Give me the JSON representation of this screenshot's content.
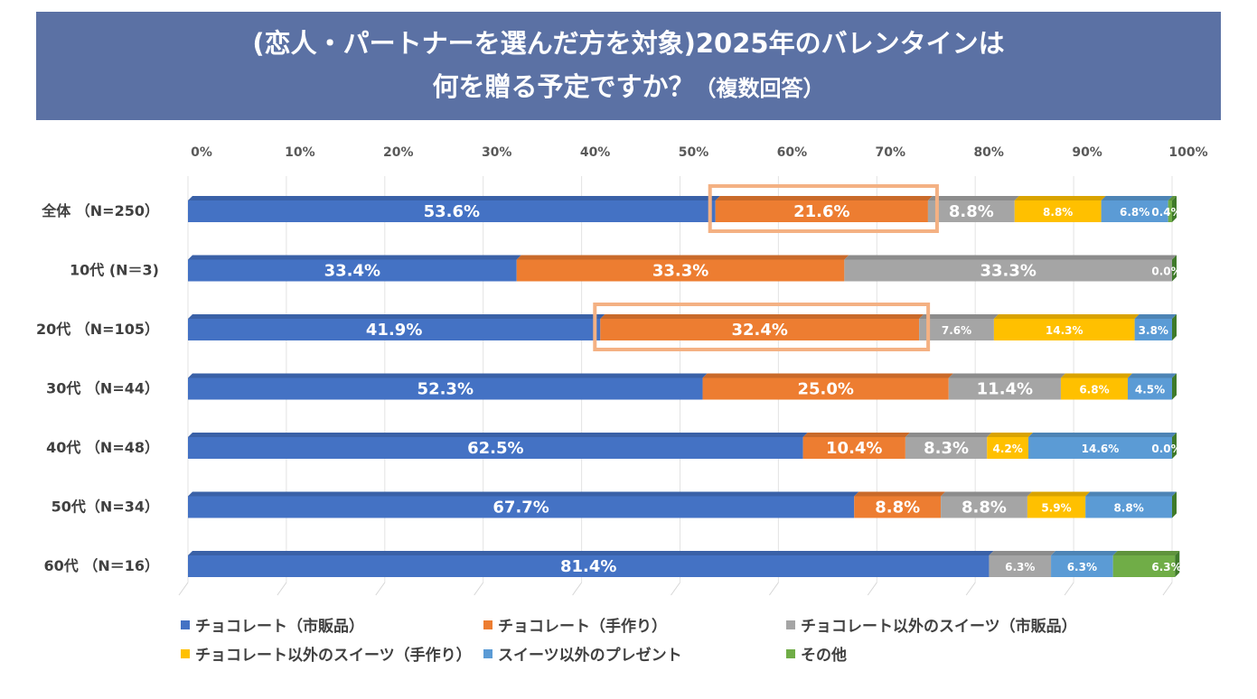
{
  "title": {
    "line1": "(恋人・パートナーを選んだ方を対象)2025年のバレンタインは",
    "line2": "何を贈る予定ですか？",
    "line2_suffix": "（複数回答）"
  },
  "chart_data": {
    "type": "bar",
    "orientation": "horizontal-stacked-100",
    "xlim": [
      0,
      100
    ],
    "xticks": [
      "0%",
      "10%",
      "20%",
      "30%",
      "40%",
      "50%",
      "60%",
      "70%",
      "80%",
      "90%",
      "100%"
    ],
    "categories": [
      "全体 （N=250）",
      "10代 (N＝3)",
      "20代 （N=105）",
      "30代 （N=44）",
      "40代 （N=48）",
      "50代（N=34）",
      "60代 （N＝16）"
    ],
    "series": [
      {
        "name": "チョコレート（市販品）",
        "color": "#4472c4",
        "values": [
          53.6,
          33.4,
          41.9,
          52.3,
          62.5,
          67.7,
          81.4
        ],
        "labels": [
          "53.6%",
          "33.4%",
          "41.9%",
          "52.3%",
          "62.5%",
          "67.7%",
          "81.4%"
        ]
      },
      {
        "name": "チョコレート（手作り）",
        "color": "#ed7d31",
        "values": [
          21.6,
          33.3,
          32.4,
          25.0,
          10.4,
          8.8,
          0
        ],
        "labels": [
          "21.6%",
          "33.3%",
          "32.4%",
          "25.0%",
          "10.4%",
          "8.8%",
          ""
        ]
      },
      {
        "name": "チョコレート以外のスイーツ（市販品）",
        "color": "#a5a5a5",
        "values": [
          8.8,
          33.3,
          7.6,
          11.4,
          8.3,
          8.8,
          6.3
        ],
        "labels": [
          "8.8%",
          "33.3%",
          "7.6%",
          "11.4%",
          "8.3%",
          "8.8%",
          "6.3%"
        ]
      },
      {
        "name": "チョコレート以外のスイーツ（手作り）",
        "color": "#ffc000",
        "values": [
          8.8,
          0,
          14.3,
          6.8,
          4.2,
          5.9,
          0
        ],
        "labels": [
          "8.8%",
          "",
          "14.3%",
          "6.8%",
          "4.2%",
          "5.9%",
          ""
        ]
      },
      {
        "name": "スイーツ以外のプレゼント",
        "color": "#5b9bd5",
        "values": [
          6.8,
          0,
          3.8,
          4.5,
          14.6,
          8.8,
          6.3
        ],
        "labels": [
          "6.8%",
          "",
          "3.8%",
          "4.5%",
          "14.6%",
          "8.8%",
          "6.3%"
        ]
      },
      {
        "name": "その他",
        "color": "#70ad47",
        "values": [
          0.4,
          0.0,
          0,
          0,
          0.0,
          0,
          6.3
        ],
        "labels": [
          "0.4%",
          "0.0%",
          "",
          "",
          "0.0%",
          "",
          "6.3%"
        ]
      }
    ],
    "highlights": [
      {
        "category_index": 0,
        "series_index": 1,
        "color": "#f4b183"
      },
      {
        "category_index": 2,
        "series_index": 1,
        "color": "#f4b183"
      }
    ],
    "grid": true,
    "legend_position": "bottom"
  }
}
